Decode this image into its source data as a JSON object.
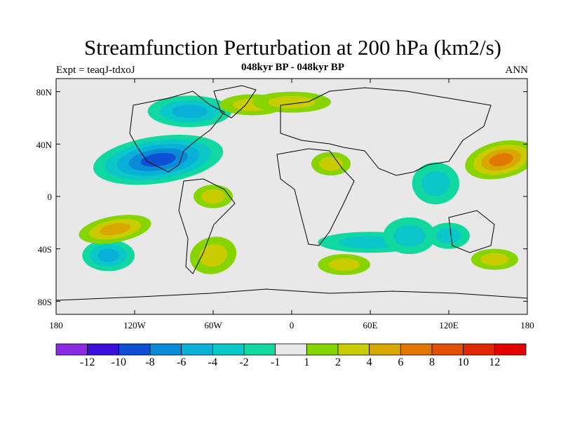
{
  "title": "Streamfunction Perturbation at 200 hPa (km2/s)",
  "subtitle": "048kyr BP - 048kyr BP",
  "left_label": "Expt = teaqJ-tdxoJ",
  "right_label": "ANN",
  "lat_labels": [
    "80N",
    "40N",
    "0",
    "40S",
    "80S"
  ],
  "lon_labels": [
    "180",
    "120W",
    "60W",
    "0",
    "60E",
    "120E",
    "180"
  ],
  "colorbar": {
    "colors": [
      "#8a2be2",
      "#3a10d8",
      "#0f4fd3",
      "#0a8bd8",
      "#0ab0d8",
      "#0bc8c8",
      "#10d8a0",
      "#e8e8e8",
      "#88d400",
      "#c8cc00",
      "#d8a800",
      "#e07800",
      "#e05000",
      "#e02800",
      "#e00000"
    ],
    "labels": [
      "-12",
      "-10",
      "-8",
      "-6",
      "-4",
      "-2",
      "-1",
      "1",
      "2",
      "4",
      "6",
      "8",
      "10",
      "12"
    ]
  },
  "map_fields": {
    "blobs": [
      {
        "lon": -102,
        "lat": 28,
        "value": -9,
        "rx": 50,
        "ry": 18,
        "rot": -8
      },
      {
        "lon": -78,
        "lat": 65,
        "value": -4,
        "rx": 32,
        "ry": 12,
        "rot": 0
      },
      {
        "lon": -140,
        "lat": -45,
        "value": -4,
        "rx": 20,
        "ry": 12,
        "rot": 0
      },
      {
        "lon": -135,
        "lat": -25,
        "value": 5,
        "rx": 28,
        "ry": 10,
        "rot": -10
      },
      {
        "lon": -60,
        "lat": -45,
        "value": 3,
        "rx": 18,
        "ry": 14,
        "rot": -15
      },
      {
        "lon": 160,
        "lat": 28,
        "value": 6,
        "rx": 28,
        "ry": 14,
        "rot": -12
      },
      {
        "lon": 155,
        "lat": -48,
        "value": 2,
        "rx": 18,
        "ry": 8,
        "rot": 0
      },
      {
        "lon": 40,
        "lat": -52,
        "value": 2,
        "rx": 20,
        "ry": 8,
        "rot": 0
      },
      {
        "lon": -60,
        "lat": 0,
        "value": 2,
        "rx": 15,
        "ry": 9,
        "rot": 0
      },
      {
        "lon": -30,
        "lat": 70,
        "value": 2,
        "rx": 25,
        "ry": 8,
        "rot": 0
      },
      {
        "lon": 0,
        "lat": 72,
        "value": 2,
        "rx": 30,
        "ry": 8,
        "rot": 0
      },
      {
        "lon": 30,
        "lat": 25,
        "value": 2,
        "rx": 15,
        "ry": 9,
        "rot": 0
      },
      {
        "lon": 60,
        "lat": -35,
        "value": -2,
        "rx": 40,
        "ry": 8,
        "rot": 0
      },
      {
        "lon": 110,
        "lat": 10,
        "value": -2,
        "rx": 18,
        "ry": 16,
        "rot": 0
      },
      {
        "lon": 90,
        "lat": -30,
        "value": -2,
        "rx": 20,
        "ry": 14,
        "rot": 0
      },
      {
        "lon": 120,
        "lat": -30,
        "value": -2,
        "rx": 16,
        "ry": 10,
        "rot": 0
      }
    ]
  }
}
